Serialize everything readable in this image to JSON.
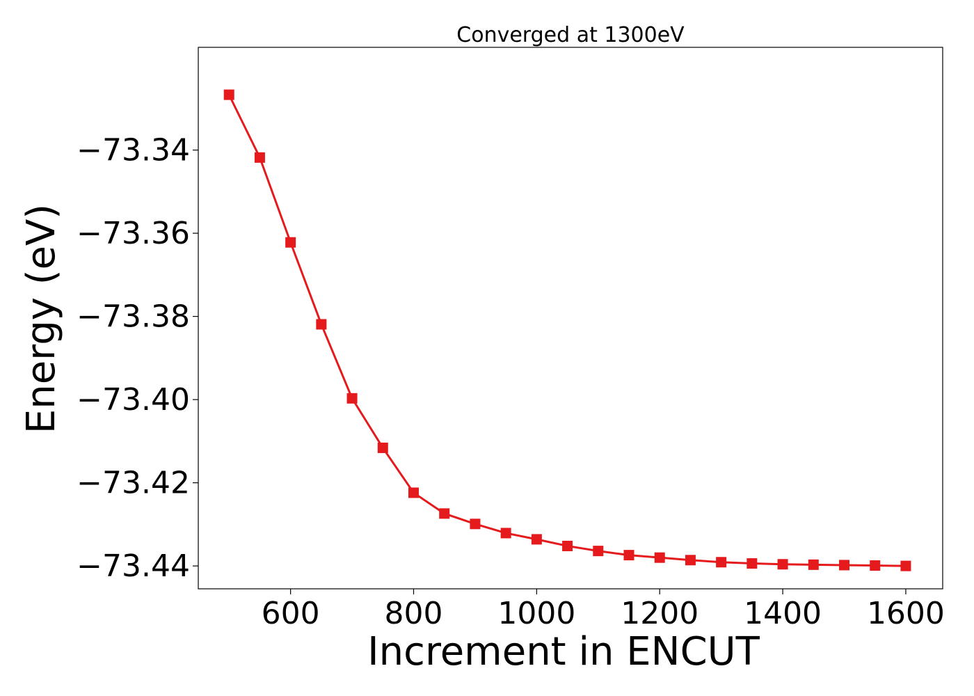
{
  "chart_data": {
    "type": "line",
    "title": "Converged at 1300eV",
    "xlabel": "Increment in ENCUT",
    "ylabel": "Energy (eV)",
    "xlim": [
      450,
      1660
    ],
    "ylim": [
      -73.4455,
      -73.3153
    ],
    "xticks": [
      600,
      800,
      1000,
      1200,
      1400,
      1600
    ],
    "yticks": [
      -73.34,
      -73.36,
      -73.38,
      -73.4,
      -73.42,
      -73.44
    ],
    "ytick_labels": [
      "−73.34",
      "−73.36",
      "−73.38",
      "−73.40",
      "−73.42",
      "−73.44"
    ],
    "grid": false,
    "legend": "none",
    "color": "#e41a1c",
    "marker": "square",
    "series": [
      {
        "x": [
          500,
          550,
          600,
          650,
          700,
          750,
          800,
          850,
          900,
          950,
          1000,
          1050,
          1100,
          1150,
          1200,
          1250,
          1300,
          1350,
          1400,
          1450,
          1500,
          1550,
          1600
        ],
        "y": [
          -73.3267,
          -73.3418,
          -73.3622,
          -73.3819,
          -73.3997,
          -73.4116,
          -73.4224,
          -73.4274,
          -73.4299,
          -73.4321,
          -73.4336,
          -73.4352,
          -73.4364,
          -73.4374,
          -73.438,
          -73.4386,
          -73.4391,
          -73.4394,
          -73.4396,
          -73.4397,
          -73.4398,
          -73.4399,
          -73.44
        ]
      }
    ]
  }
}
